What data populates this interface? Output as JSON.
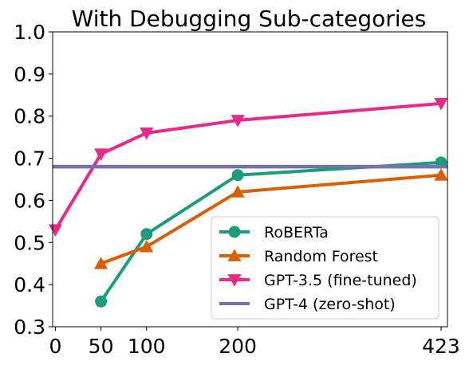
{
  "chart_data": {
    "type": "line",
    "title": "With Debugging Sub-categories",
    "xlabel": "",
    "ylabel": "",
    "xlim": [
      -3,
      430
    ],
    "ylim": [
      0.3,
      1.0
    ],
    "xticks": [
      0,
      50,
      100,
      200,
      423
    ],
    "yticks": [
      0.3,
      0.4,
      0.5,
      0.6,
      0.7,
      0.8,
      0.9,
      1.0
    ],
    "grid": false,
    "legend_position": "lower-right",
    "series": [
      {
        "name": "RoBERTa",
        "color": "#1b9e77",
        "marker": "circle",
        "x": [
          50,
          100,
          200,
          423
        ],
        "y": [
          0.36,
          0.52,
          0.66,
          0.69
        ]
      },
      {
        "name": "Random Forest",
        "color": "#d95f02",
        "marker": "triangle-up",
        "x": [
          50,
          100,
          200,
          423
        ],
        "y": [
          0.45,
          0.49,
          0.62,
          0.66
        ]
      },
      {
        "name": "GPT-3.5 (fine-tuned)",
        "color": "#e7298a",
        "marker": "triangle-down",
        "x": [
          0,
          50,
          100,
          200,
          423
        ],
        "y": [
          0.53,
          0.71,
          0.76,
          0.79,
          0.83
        ]
      },
      {
        "name": "GPT-4 (zero-shot)",
        "color": "#7570b3",
        "marker": "none",
        "type": "hline",
        "y": 0.68
      }
    ]
  }
}
